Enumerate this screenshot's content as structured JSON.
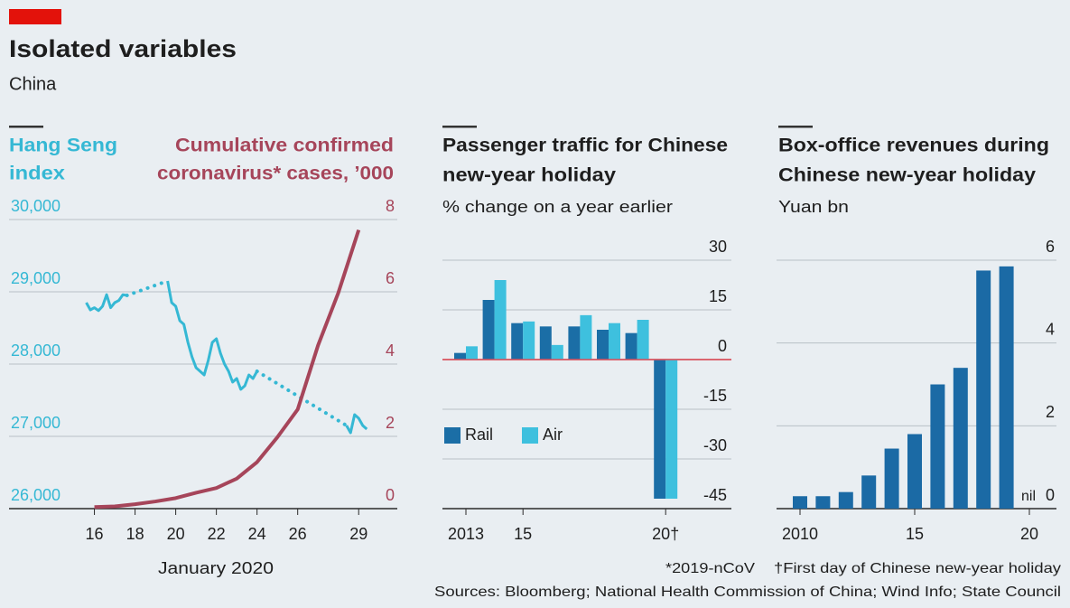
{
  "title": "Isolated variables",
  "subtitle": "China",
  "footnotes": [
    "*2019-nCoV",
    "†First day of Chinese new-year holiday"
  ],
  "sources": "Sources: Bloomberg; National Health Commission of China; Wind Info; State Council",
  "chart_data": [
    {
      "type": "line",
      "xlabel": "January 2020",
      "ylabel": [
        "Hang Seng",
        "index"
      ],
      "y2label": [
        "Cumulative confirmed",
        "coronavirus* cases, ’000"
      ],
      "xlim": [
        11.8,
        30.9
      ],
      "xticks": [
        16,
        18,
        20,
        22,
        24,
        26,
        29
      ],
      "ylim": [
        26000,
        30000
      ],
      "yticks": [
        {
          "value": 26000,
          "label": "26,000"
        },
        {
          "value": 27000,
          "label": "27,000"
        },
        {
          "value": 28000,
          "label": "28,000"
        },
        {
          "value": 29000,
          "label": "29,000"
        },
        {
          "value": 30000,
          "label": "30,000"
        }
      ],
      "y2lim": [
        0,
        8
      ],
      "y2ticks": [
        0,
        2,
        4,
        6,
        8
      ],
      "grid": true,
      "series": [
        {
          "color": "#35b8d4",
          "x": [
            15.6,
            15.8,
            16.0,
            16.2,
            16.4,
            16.6,
            16.8,
            17.0,
            17.2,
            17.4,
            17.6,
            18.6,
            19.6,
            19.8,
            20.0,
            20.2,
            20.4,
            20.6,
            20.8,
            21.0,
            21.2,
            21.4,
            21.6,
            21.8,
            22.0,
            22.2,
            22.4,
            22.6,
            22.8,
            23.0,
            23.2,
            23.4,
            23.6,
            23.8,
            24.0,
            26.2,
            28.4,
            28.6,
            28.8,
            29.0,
            29.2,
            29.4
          ],
          "values": [
            28850,
            28750,
            28780,
            28740,
            28800,
            28960,
            28780,
            28850,
            28880,
            28960,
            28950,
            null,
            29150,
            28850,
            28800,
            28600,
            28550,
            28300,
            28100,
            27950,
            27900,
            27850,
            28050,
            28300,
            28350,
            28150,
            28000,
            27900,
            27750,
            27800,
            27650,
            27700,
            27850,
            27800,
            27900,
            null,
            27150,
            27050,
            27300,
            27250,
            27150,
            27100
          ]
        },
        {
          "color": "#a6455a",
          "axis": "y2",
          "x": [
            16,
            17,
            18,
            19,
            20,
            21,
            22,
            23,
            24,
            25,
            26,
            27,
            28,
            29
          ],
          "values": [
            0.045,
            0.062,
            0.121,
            0.198,
            0.291,
            0.44,
            0.571,
            0.83,
            1.287,
            1.975,
            2.744,
            4.515,
            5.974,
            7.711
          ]
        }
      ]
    },
    {
      "type": "bar",
      "title": [
        "Passenger traffic for Chinese",
        "new-year holiday"
      ],
      "subtitle": "% change on a year earlier",
      "categories": [
        "2013",
        null,
        "15",
        null,
        null,
        null,
        null,
        "20†"
      ],
      "series": [
        {
          "name": "Rail",
          "color": "#1b6ea6",
          "values": [
            2,
            18,
            11,
            10,
            10,
            9,
            8,
            -42
          ]
        },
        {
          "name": "Air",
          "color": "#3ec0de",
          "values": [
            4,
            24,
            11.5,
            4.4,
            13.4,
            11,
            12,
            -42
          ]
        }
      ],
      "ylim": [
        -45,
        30
      ],
      "yticks": [
        30,
        15,
        0,
        -15,
        -30,
        -45
      ],
      "grid": true,
      "legend": "lower left"
    },
    {
      "type": "bar",
      "title": [
        "Box-office revenues during",
        "Chinese new-year holiday"
      ],
      "subtitle": "Yuan bn",
      "categories": [
        "2010",
        null,
        null,
        null,
        null,
        "15",
        null,
        null,
        null,
        null,
        "20"
      ],
      "values": [
        0.3,
        0.3,
        0.4,
        0.8,
        1.45,
        1.8,
        3.0,
        3.4,
        5.75,
        5.85,
        null
      ],
      "color": "#1b6aa5",
      "annotation": "nil",
      "ylim": [
        0,
        6
      ],
      "yticks": [
        0,
        2,
        4,
        6
      ],
      "grid": true
    }
  ]
}
